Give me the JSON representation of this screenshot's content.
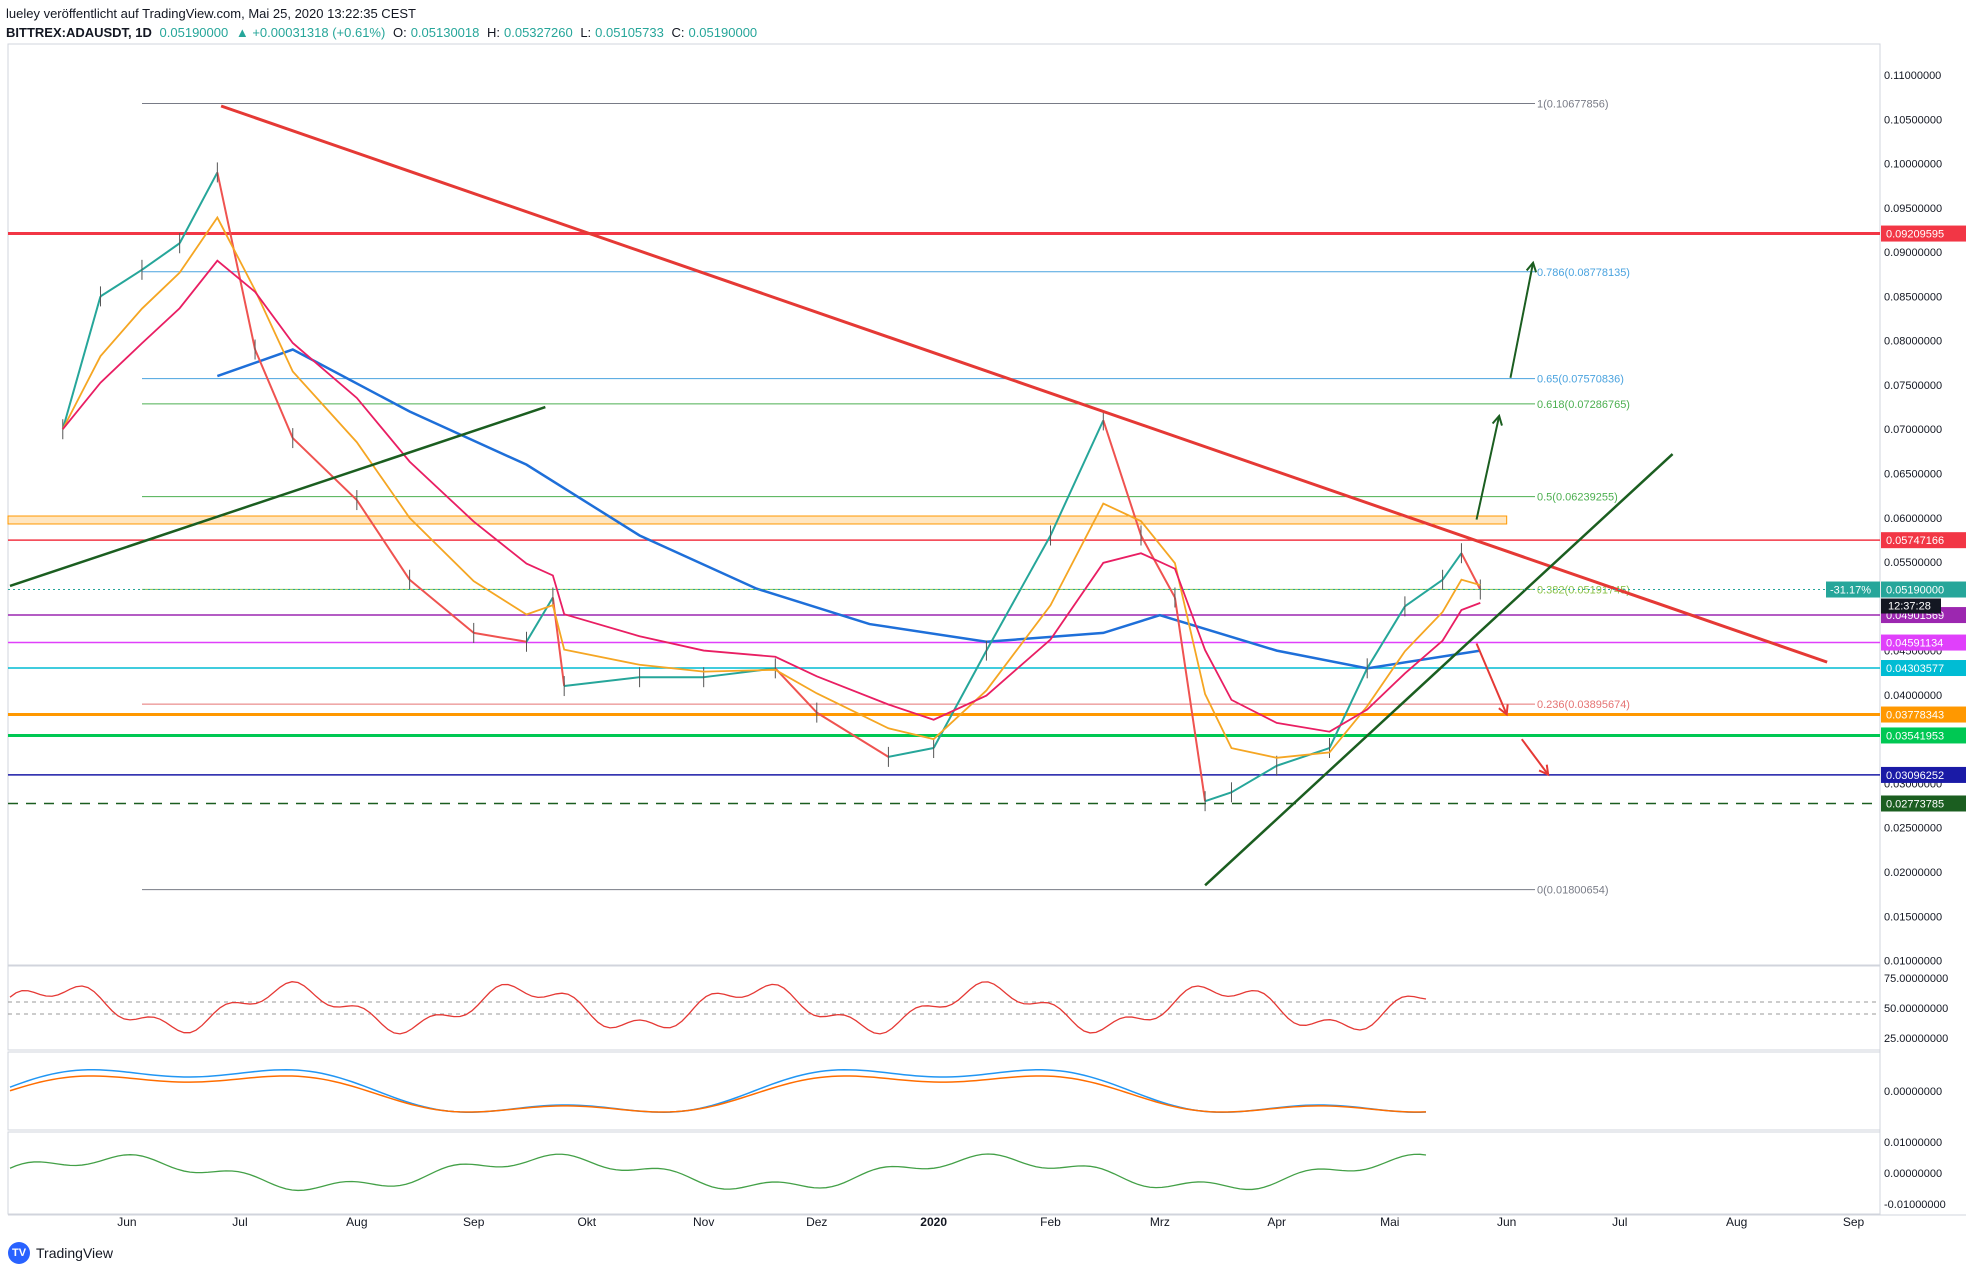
{
  "header": {
    "line1": "lueley veröffentlicht auf TradingView.com, Mai 25, 2020 13:22:35 CEST",
    "symbol": "BITTREX:ADAUSDT, 1D",
    "last": "0.05190000",
    "change": "▲ +0.00031318 (+0.61%)",
    "o_label": "O:",
    "o_val": "0.05130018",
    "h_label": "H:",
    "h_val": "0.05327260",
    "l_label": "L:",
    "l_val": "0.05105733",
    "c_label": "C:",
    "c_val": "0.05190000"
  },
  "footer": {
    "brand": "TradingView",
    "logo": "tradingview-logo-icon"
  },
  "colors": {
    "up": "#26a69a",
    "down": "#ef5350",
    "ema_fast": "#f5a623",
    "ema_mid": "#e91e63",
    "ma_long": "#1e6fd9",
    "trend_red": "#e53935",
    "trend_green": "#1b5e20"
  },
  "chart_data": [
    {
      "type": "line",
      "title": "",
      "x_ticks": [
        "Jun",
        "Jul",
        "Aug",
        "Sep",
        "Okt",
        "Nov",
        "Dez",
        "2020",
        "Feb",
        "Mrz",
        "Apr",
        "Mai",
        "Jun",
        "Jul",
        "Aug",
        "Sep"
      ],
      "y_ticks": [
        "0.11000000",
        "0.10500000",
        "0.10000000",
        "0.09500000",
        "0.09000000",
        "0.08500000",
        "0.08000000",
        "0.07500000",
        "0.07000000",
        "0.06500000",
        "0.06000000",
        "0.05500000",
        "0.04500000",
        "0.04000000",
        "0.03500000",
        "0.03000000",
        "0.02500000",
        "0.02000000",
        "0.01500000",
        "0.01000000"
      ],
      "ylim": [
        0.0095,
        0.1135
      ],
      "price_points": [
        {
          "t": "May 15 2019",
          "v": 0.07
        },
        {
          "t": "May 25 2019",
          "v": 0.085
        },
        {
          "t": "Jun 5 2019",
          "v": 0.088
        },
        {
          "t": "Jun 15 2019",
          "v": 0.091
        },
        {
          "t": "Jun 25 2019",
          "v": 0.099
        },
        {
          "t": "Jul 5 2019",
          "v": 0.079
        },
        {
          "t": "Jul 15 2019",
          "v": 0.069
        },
        {
          "t": "Aug 1 2019",
          "v": 0.062
        },
        {
          "t": "Aug 15 2019",
          "v": 0.053
        },
        {
          "t": "Sep 1 2019",
          "v": 0.047
        },
        {
          "t": "Sep 15 2019",
          "v": 0.046
        },
        {
          "t": "Sep 22 2019",
          "v": 0.051
        },
        {
          "t": "Sep 25 2019",
          "v": 0.041
        },
        {
          "t": "Oct 15 2019",
          "v": 0.042
        },
        {
          "t": "Nov 1 2019",
          "v": 0.042
        },
        {
          "t": "Nov 20 2019",
          "v": 0.043
        },
        {
          "t": "Dec 1 2019",
          "v": 0.038
        },
        {
          "t": "Dec 20 2019",
          "v": 0.033
        },
        {
          "t": "Jan 1 2020",
          "v": 0.034
        },
        {
          "t": "Jan 15 2020",
          "v": 0.045
        },
        {
          "t": "Feb 1 2020",
          "v": 0.058
        },
        {
          "t": "Feb 15 2020",
          "v": 0.071
        },
        {
          "t": "Feb 25 2020",
          "v": 0.058
        },
        {
          "t": "Mar 5 2020",
          "v": 0.051
        },
        {
          "t": "Mar 13 2020",
          "v": 0.028
        },
        {
          "t": "Mar 20 2020",
          "v": 0.029
        },
        {
          "t": "Apr 1 2020",
          "v": 0.032
        },
        {
          "t": "Apr 15 2020",
          "v": 0.034
        },
        {
          "t": "Apr 25 2020",
          "v": 0.043
        },
        {
          "t": "May 5 2020",
          "v": 0.05
        },
        {
          "t": "May 15 2020",
          "v": 0.053
        },
        {
          "t": "May 20 2020",
          "v": 0.056
        },
        {
          "t": "May 25 2020",
          "v": 0.0519
        }
      ],
      "ma_long_points": [
        {
          "t": "Jun 25 2019",
          "v": 0.076
        },
        {
          "t": "Jul 15 2019",
          "v": 0.079
        },
        {
          "t": "Aug 15 2019",
          "v": 0.072
        },
        {
          "t": "Sep 15 2019",
          "v": 0.066
        },
        {
          "t": "Oct 15 2019",
          "v": 0.058
        },
        {
          "t": "Nov 15 2019",
          "v": 0.052
        },
        {
          "t": "Dec 15 2019",
          "v": 0.048
        },
        {
          "t": "Jan 15 2020",
          "v": 0.046
        },
        {
          "t": "Feb 15 2020",
          "v": 0.047
        },
        {
          "t": "Mar 1 2020",
          "v": 0.049
        },
        {
          "t": "Apr 1 2020",
          "v": 0.045
        },
        {
          "t": "Apr 25 2020",
          "v": 0.043
        },
        {
          "t": "May 25 2020",
          "v": 0.045
        }
      ],
      "fibonacci": [
        {
          "label": "1(0.10677856)",
          "v": 0.10677856,
          "color": "#787b86"
        },
        {
          "label": "0.786(0.08778135)",
          "v": 0.08778135,
          "color": "#4aa3df"
        },
        {
          "label": "0.65(0.07570836)",
          "v": 0.07570836,
          "color": "#4aa3df"
        },
        {
          "label": "0.618(0.07286765)",
          "v": 0.07286765,
          "color": "#4caf50"
        },
        {
          "label": "0.5(0.06239255)",
          "v": 0.06239255,
          "color": "#4caf50"
        },
        {
          "label": "0.382(0.05191745)",
          "v": 0.05191745,
          "color": "#8bc34a"
        },
        {
          "label": "0.236(0.03895674)",
          "v": 0.03895674,
          "color": "#e57373"
        },
        {
          "label": "0(0.01800654)",
          "v": 0.01800654,
          "color": "#787b86"
        }
      ],
      "levels": [
        {
          "label": "0.09209595",
          "v": 0.09209595,
          "color": "#f23645"
        },
        {
          "label": "0.05747166",
          "v": 0.05747166,
          "color": "#f23645"
        },
        {
          "label": "0.04901569",
          "v": 0.04901569,
          "color": "#9c27b0"
        },
        {
          "label": "0.04591134",
          "v": 0.04591134,
          "color": "#e040fb"
        },
        {
          "label": "0.04303577",
          "v": 0.04303577,
          "color": "#00bcd4"
        },
        {
          "label": "0.03778343",
          "v": 0.03778343,
          "color": "#ff9800"
        },
        {
          "label": "0.03541953",
          "v": 0.03541953,
          "color": "#00c853"
        },
        {
          "label": "0.03096252",
          "v": 0.03096252,
          "color": "#1a1aa6"
        },
        {
          "label": "0.02773785",
          "v": 0.02773785,
          "color": "#1b5e20"
        }
      ],
      "last_price_tag": {
        "value": "0.05190000",
        "change": "-31.17%",
        "countdown": "12:37:28"
      },
      "resistance_zone": [
        0.0593,
        0.0602
      ],
      "trendlines": [
        {
          "name": "descending",
          "color": "#e53935",
          "from": {
            "t": "Jun 26 2019",
            "v": 0.1065
          },
          "to": {
            "t": "Aug 25 2020",
            "v": 0.0437
          }
        },
        {
          "name": "ascending",
          "color": "#1b5e20",
          "from": {
            "t": "Mar 13 2020",
            "v": 0.0185
          },
          "to": {
            "t": "Jul 15 2020",
            "v": 0.0672
          }
        },
        {
          "name": "old-ascending",
          "color": "#1b5e20",
          "from": {
            "t": "May 1 2019",
            "v": 0.0523
          },
          "to": {
            "t": "Sep 20 2019",
            "v": 0.0725
          }
        }
      ]
    },
    {
      "type": "line",
      "title": "",
      "y_ticks": [
        "75.00000000",
        "50.00000000",
        "25.00000000"
      ],
      "ylim": [
        15,
        85
      ]
    },
    {
      "type": "line",
      "title": "",
      "y_ticks": [
        "0.00000000"
      ]
    },
    {
      "type": "line",
      "title": "",
      "y_ticks": [
        "0.01000000",
        "0.00000000",
        "-0.01000000"
      ]
    }
  ]
}
